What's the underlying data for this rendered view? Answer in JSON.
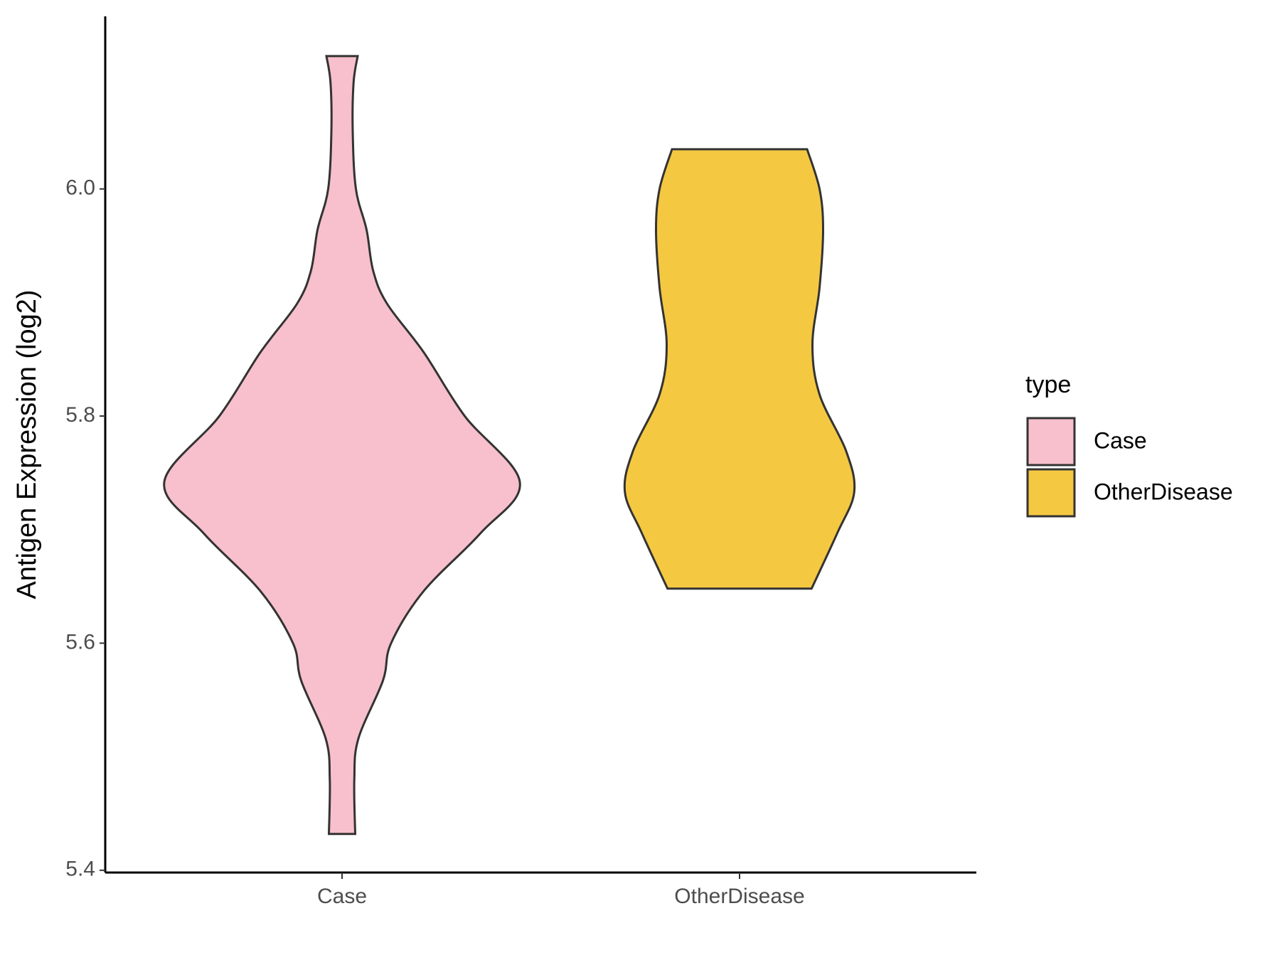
{
  "chart_data": {
    "type": "violin",
    "y_label": "Antigen Expression (log2)",
    "categories": [
      "Case",
      "OtherDisease"
    ],
    "ylim": [
      5.398,
      6.152
    ],
    "yticks": [
      5.4,
      5.6,
      5.8,
      {
        "value": 6,
        "label": "6.0"
      }
    ],
    "legend_title": "type",
    "legend_position": "right",
    "series": [
      {
        "name": "Case",
        "color": "#f7c0cc",
        "y": [
          6.117,
          6.094,
          6.051,
          6.0,
          5.964,
          5.928,
          5.899,
          5.856,
          5.8,
          5.742,
          5.697,
          5.646,
          5.6,
          5.567,
          5.516,
          5.48,
          5.432
        ],
        "density": [
          0.088,
          0.065,
          0.06,
          0.078,
          0.138,
          0.175,
          0.253,
          0.46,
          0.69,
          1,
          0.78,
          0.46,
          0.276,
          0.23,
          0.092,
          0.069,
          0.074
        ]
      },
      {
        "name": "OtherDisease",
        "color": "#f5c842",
        "y": [
          6.035,
          6.0,
          5.964,
          5.913,
          5.863,
          5.819,
          5.769,
          5.733,
          5.697,
          5.648
        ],
        "density": [
          0.38,
          0.45,
          0.47,
          0.45,
          0.41,
          0.45,
          0.6,
          0.645,
          0.55,
          0.405
        ]
      }
    ]
  }
}
